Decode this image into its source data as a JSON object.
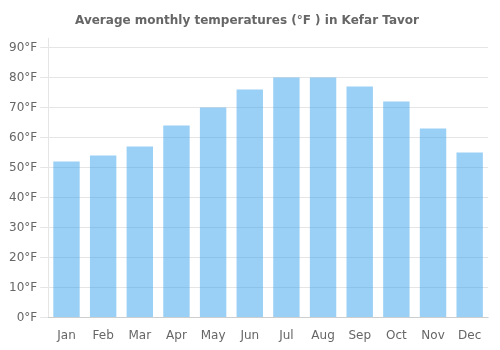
{
  "chart_data": {
    "type": "bar",
    "title": "Average monthly temperatures (°F ) in Kefar Tavor",
    "categories": [
      "Jan",
      "Feb",
      "Mar",
      "Apr",
      "May",
      "Jun",
      "Jul",
      "Aug",
      "Sep",
      "Oct",
      "Nov",
      "Dec"
    ],
    "values": [
      52,
      54,
      57,
      64,
      70,
      76,
      80,
      80,
      77,
      72,
      63,
      55
    ],
    "ylim": [
      0,
      93
    ],
    "yticks": [
      {
        "value": 0,
        "label": "0°F"
      },
      {
        "value": 10,
        "label": "10°F"
      },
      {
        "value": 20,
        "label": "20°F"
      },
      {
        "value": 30,
        "label": "30°F"
      },
      {
        "value": 40,
        "label": "40°F"
      },
      {
        "value": 50,
        "label": "50°F"
      },
      {
        "value": 60,
        "label": "60°F"
      },
      {
        "value": 70,
        "label": "70°F"
      },
      {
        "value": 80,
        "label": "80°F"
      },
      {
        "value": 90,
        "label": "90°F"
      }
    ],
    "grid": true
  }
}
